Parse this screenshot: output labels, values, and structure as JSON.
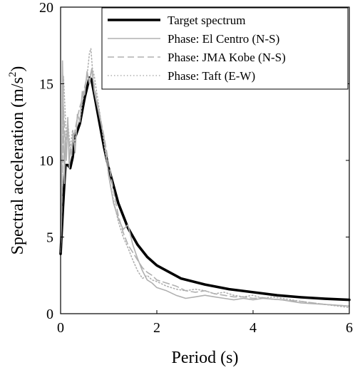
{
  "chart_data": {
    "type": "line",
    "xlabel": "Period (s)",
    "ylabel": "Spectral acceleration (m/s",
    "ylabel_sup": "2",
    "ylabel_close": ")",
    "xlim": [
      0,
      6
    ],
    "ylim": [
      0,
      20
    ],
    "xticks": [
      "0",
      "2",
      "4",
      "6"
    ],
    "yticks": [
      "0",
      "5",
      "10",
      "15",
      "20"
    ],
    "grid": false,
    "legend_position": "top-right",
    "series": [
      {
        "name": "Target spectrum",
        "color": "#000000",
        "style": "solid-thick",
        "x": [
          0.0,
          0.05,
          0.1,
          0.12,
          0.15,
          0.2,
          0.25,
          0.3,
          0.4,
          0.5,
          0.6,
          0.64,
          0.7,
          0.8,
          0.9,
          1.0,
          1.2,
          1.4,
          1.6,
          1.8,
          2.0,
          2.5,
          3.0,
          3.5,
          4.0,
          4.5,
          5.0,
          5.5,
          6.0
        ],
        "y": [
          3.9,
          7.0,
          9.7,
          9.7,
          9.7,
          9.5,
          10.2,
          11.5,
          12.4,
          14.1,
          15.4,
          15.3,
          14.3,
          12.6,
          10.9,
          9.5,
          7.2,
          5.6,
          4.5,
          3.7,
          3.15,
          2.3,
          1.9,
          1.6,
          1.4,
          1.2,
          1.07,
          0.97,
          0.9
        ]
      },
      {
        "name": "Phase: El Centro (N-S)",
        "color": "#b0b0b0",
        "style": "solid",
        "x": [
          0.0,
          0.02,
          0.04,
          0.06,
          0.08,
          0.1,
          0.12,
          0.15,
          0.18,
          0.2,
          0.23,
          0.26,
          0.3,
          0.35,
          0.4,
          0.45,
          0.5,
          0.55,
          0.6,
          0.65,
          0.7,
          0.8,
          0.9,
          1.0,
          1.1,
          1.2,
          1.3,
          1.4,
          1.5,
          1.6,
          1.7,
          1.8,
          1.9,
          2.0,
          2.2,
          2.4,
          2.6,
          2.8,
          3.0,
          3.2,
          3.4,
          3.6,
          3.8,
          4.0,
          4.2,
          4.4,
          4.6,
          4.8,
          5.0,
          5.5,
          6.0
        ],
        "y": [
          4.0,
          6.0,
          16.5,
          13.0,
          8.5,
          11.5,
          10.0,
          12.8,
          9.5,
          10.8,
          10.3,
          11.8,
          10.5,
          13.0,
          12.5,
          14.5,
          14.3,
          15.8,
          15.0,
          16.0,
          14.5,
          13.0,
          11.5,
          9.0,
          7.2,
          6.2,
          5.5,
          5.8,
          4.5,
          3.6,
          2.8,
          2.2,
          2.0,
          1.7,
          1.5,
          1.2,
          1.0,
          1.1,
          1.2,
          1.1,
          1.0,
          0.9,
          1.0,
          0.9,
          1.0,
          0.95,
          0.9,
          0.8,
          0.7,
          0.6,
          0.5
        ]
      },
      {
        "name": "Phase: JMA Kobe (N-S)",
        "color": "#b0b0b0",
        "style": "dashed",
        "x": [
          0.0,
          0.03,
          0.06,
          0.1,
          0.15,
          0.2,
          0.25,
          0.3,
          0.35,
          0.4,
          0.45,
          0.5,
          0.55,
          0.6,
          0.65,
          0.7,
          0.8,
          0.9,
          1.0,
          1.1,
          1.2,
          1.3,
          1.4,
          1.5,
          1.6,
          1.7,
          1.8,
          1.9,
          2.0,
          2.2,
          2.4,
          2.6,
          2.8,
          3.0,
          3.2,
          3.4,
          3.6,
          3.8,
          4.0,
          4.2,
          4.4,
          4.6,
          4.8,
          5.0,
          5.5,
          6.0
        ],
        "y": [
          4.0,
          7.5,
          13.5,
          11.0,
          12.0,
          10.5,
          11.2,
          12.0,
          12.8,
          13.5,
          14.0,
          14.8,
          15.5,
          15.3,
          16.0,
          14.8,
          13.2,
          11.6,
          9.8,
          8.0,
          6.4,
          5.3,
          4.5,
          4.0,
          3.5,
          3.0,
          2.7,
          2.5,
          2.2,
          2.0,
          1.8,
          1.5,
          1.4,
          1.5,
          1.3,
          1.2,
          1.1,
          1.1,
          1.0,
          1.05,
          0.95,
          0.9,
          0.85,
          0.8,
          0.6,
          0.5
        ]
      },
      {
        "name": "Phase: Taft (E-W)",
        "color": "#b0b0b0",
        "style": "dotted",
        "x": [
          0.0,
          0.03,
          0.06,
          0.09,
          0.12,
          0.15,
          0.2,
          0.25,
          0.3,
          0.35,
          0.4,
          0.45,
          0.5,
          0.55,
          0.6,
          0.63,
          0.66,
          0.7,
          0.8,
          0.9,
          1.0,
          1.1,
          1.2,
          1.3,
          1.4,
          1.5,
          1.6,
          1.7,
          1.8,
          1.9,
          2.0,
          2.2,
          2.4,
          2.6,
          2.8,
          3.0,
          3.2,
          3.4,
          3.6,
          3.8,
          4.0,
          4.2,
          4.4,
          4.6,
          4.8,
          5.0,
          5.5,
          6.0
        ],
        "y": [
          4.0,
          8.0,
          15.5,
          13.5,
          11.5,
          12.5,
          10.8,
          12.0,
          11.0,
          13.0,
          12.5,
          13.8,
          14.5,
          15.5,
          17.0,
          17.3,
          16.0,
          15.5,
          13.4,
          11.2,
          9.0,
          7.4,
          6.0,
          5.0,
          4.3,
          3.5,
          2.8,
          2.3,
          2.5,
          2.2,
          2.1,
          1.8,
          1.6,
          1.5,
          1.6,
          1.5,
          1.3,
          1.4,
          1.2,
          1.1,
          1.2,
          1.0,
          1.1,
          1.0,
          0.9,
          0.8,
          0.6,
          0.4
        ]
      }
    ]
  }
}
